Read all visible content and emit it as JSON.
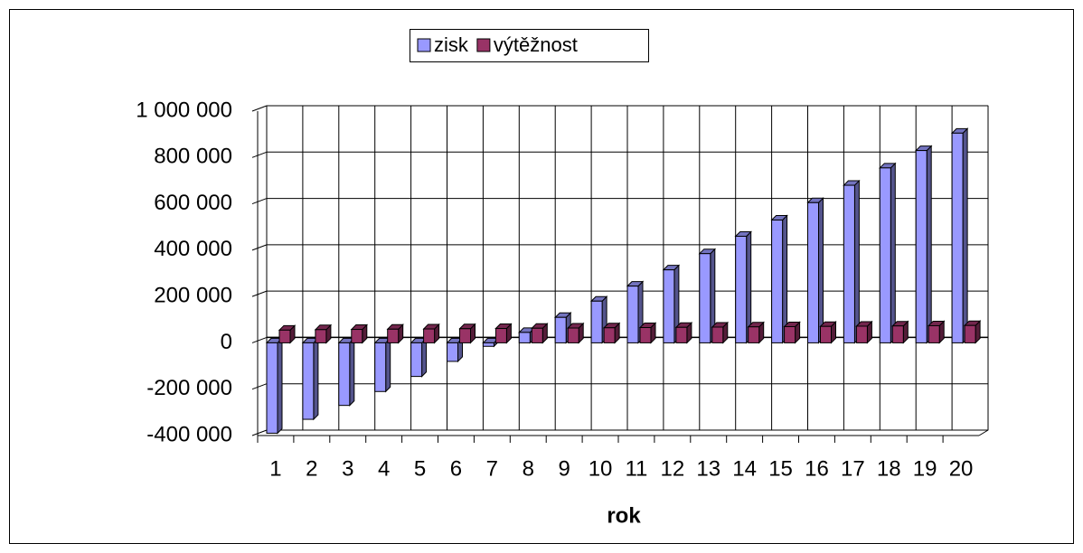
{
  "chart_data": {
    "type": "bar3d",
    "x_label": "rok",
    "categories": [
      "1",
      "2",
      "3",
      "4",
      "5",
      "6",
      "7",
      "8",
      "9",
      "10",
      "11",
      "12",
      "13",
      "14",
      "15",
      "16",
      "17",
      "18",
      "19",
      "20"
    ],
    "series": [
      {
        "name": "zisk",
        "color": "#9999ff",
        "values": [
          -390000,
          -330000,
          -270000,
          -210000,
          -145000,
          -80000,
          -15000,
          45000,
          110000,
          180000,
          245000,
          315000,
          385000,
          460000,
          530000,
          605000,
          680000,
          755000,
          830000,
          905000
        ]
      },
      {
        "name": "výtěžnost",
        "color": "#993366",
        "values": [
          55000,
          57000,
          58000,
          59000,
          60000,
          61000,
          62000,
          63000,
          64000,
          65000,
          66000,
          67000,
          68000,
          69000,
          70000,
          71000,
          72000,
          73000,
          74000,
          75000
        ]
      }
    ],
    "ylim": [
      -400000,
      1000000
    ],
    "yticks": [
      {
        "value": -400000,
        "label": "-400 000"
      },
      {
        "value": -200000,
        "label": "-200 000"
      },
      0,
      {
        "value": 200000,
        "label": "200 000"
      },
      {
        "value": 400000,
        "label": "400 000"
      },
      {
        "value": 600000,
        "label": "600 000"
      },
      {
        "value": 800000,
        "label": "800 000"
      },
      {
        "value": 1000000,
        "label": "1 000 000"
      }
    ],
    "grid": true,
    "legend": "top"
  }
}
